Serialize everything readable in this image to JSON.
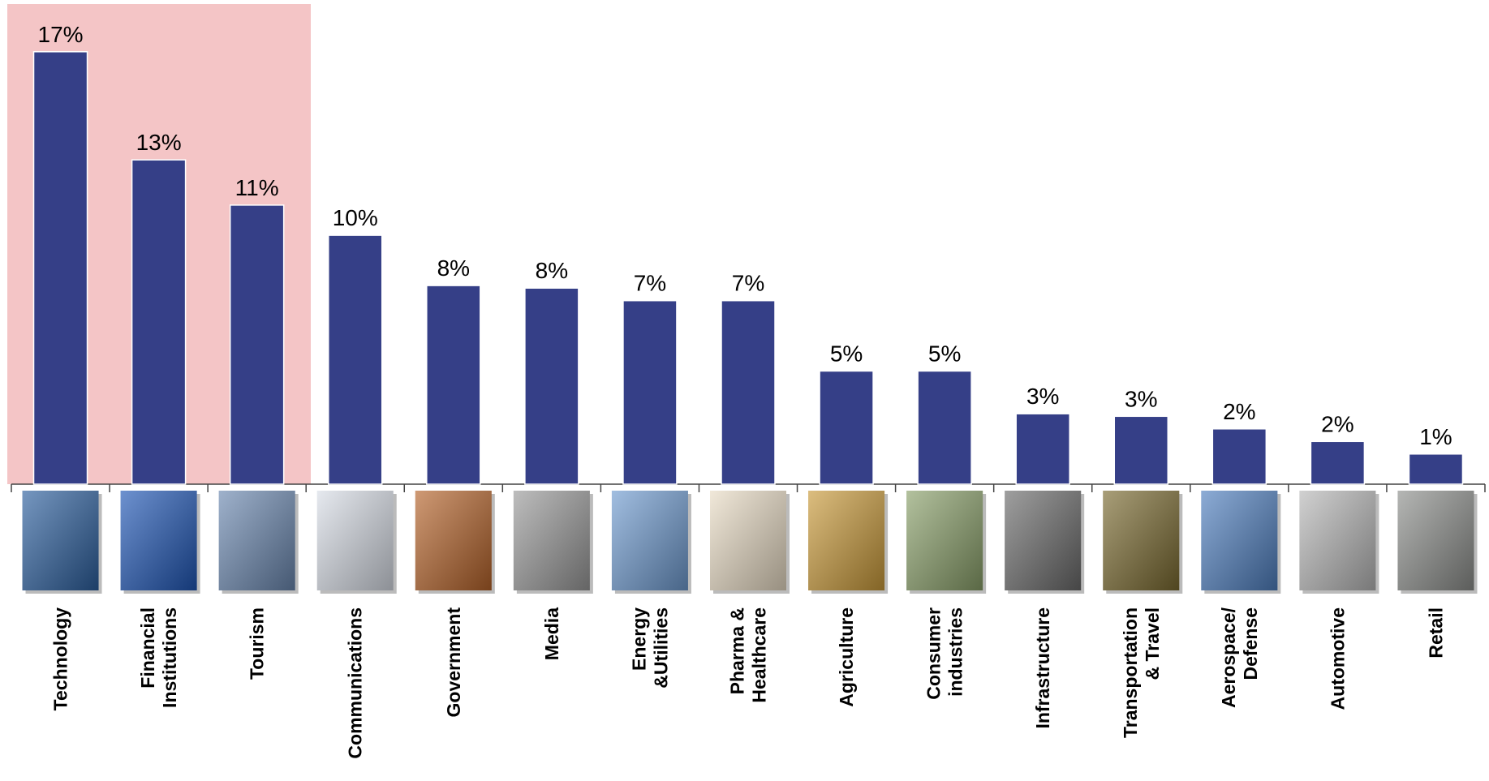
{
  "chart_data": {
    "type": "bar",
    "categories": [
      "Technology",
      "Financial\nInstitutions",
      "Tourism",
      "Communications",
      "Government",
      "Media",
      "Energy\n&Utilities",
      "Pharma &\nHealthcare",
      "Agriculture",
      "Consumer\nindustries",
      "Infrastructure",
      "Transportation\n& Travel",
      "Aerospace/\nDefense",
      "Automotive",
      "Retail"
    ],
    "values": [
      17.2,
      12.9,
      11.1,
      9.9,
      7.9,
      7.8,
      7.3,
      7.3,
      4.5,
      4.5,
      2.8,
      2.7,
      2.2,
      1.7,
      1.2
    ],
    "value_labels": [
      "17%",
      "13%",
      "11%",
      "10%",
      "8%",
      "8%",
      "7%",
      "7%",
      "5%",
      "5%",
      "3%",
      "3%",
      "2%",
      "2%",
      "1%"
    ],
    "color": "#353f87",
    "ylim": [
      0,
      19
    ]
  }
}
